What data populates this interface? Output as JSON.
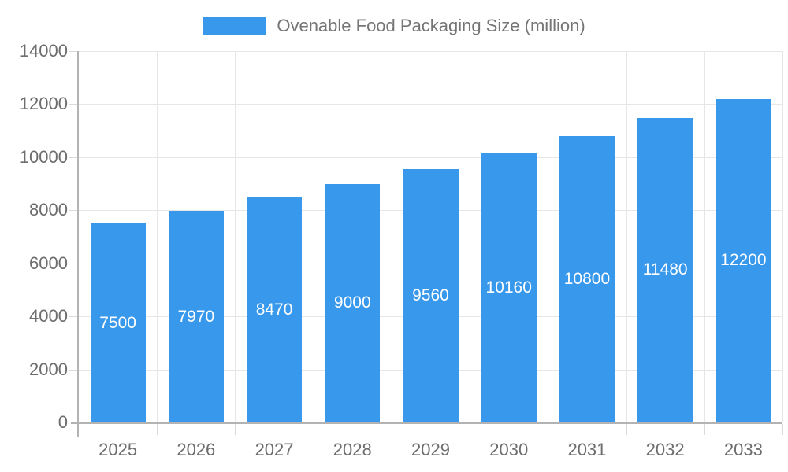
{
  "chart_data": {
    "type": "bar",
    "title": "Ovenable Food Packaging Size (million)",
    "legend": [
      "Ovenable Food Packaging Size (million)"
    ],
    "legend_position": "top",
    "categories": [
      "2025",
      "2026",
      "2027",
      "2028",
      "2029",
      "2030",
      "2031",
      "2032",
      "2033"
    ],
    "values": [
      7500,
      7970,
      8470,
      9000,
      9560,
      10160,
      10800,
      11480,
      12200
    ],
    "value_labels": [
      "7500",
      "7970",
      "8470",
      "9000",
      "9560",
      "10160",
      "10800",
      "11480",
      "12200"
    ],
    "xlabel": "",
    "ylabel": "",
    "ylim": [
      0,
      14000
    ],
    "yticks": [
      0,
      2000,
      4000,
      6000,
      8000,
      10000,
      12000,
      14000
    ],
    "grid": true,
    "colors": {
      "bar": "#3898ec",
      "bar_label": "#ffffff",
      "axis_text": "#6d6d6d",
      "legend_text": "#757575",
      "grid_line": "#e6e6e6",
      "axis_line": "#b3b3b3",
      "tick_line": "#d9d9d9",
      "background": "#ffffff"
    }
  }
}
